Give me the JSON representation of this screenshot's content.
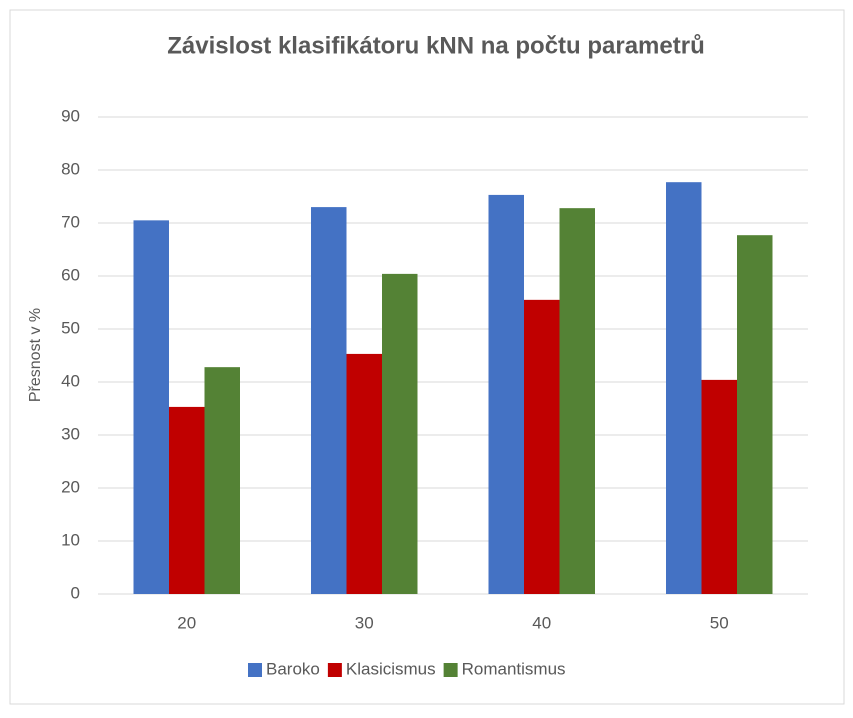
{
  "chart_data": {
    "type": "bar",
    "title": "Závislost klasifikátoru kNN na počtu parametrů",
    "y_label": "Přesnost v %",
    "categories": [
      "20",
      "30",
      "40",
      "50"
    ],
    "series": [
      {
        "name": "Baroko",
        "color": "#4472c4",
        "values": [
          70.5,
          73,
          75.3,
          77.7
        ]
      },
      {
        "name": "Klasicismus",
        "color": "#c00000",
        "values": [
          35.3,
          45.3,
          55.5,
          40.4
        ]
      },
      {
        "name": "Romantismus",
        "color": "#548235",
        "values": [
          42.8,
          60.4,
          72.8,
          67.7
        ]
      }
    ],
    "ylim": [
      0,
      90
    ],
    "yticks": [
      0,
      10,
      20,
      30,
      40,
      50,
      60,
      70,
      80,
      90
    ],
    "grid": true,
    "legend": "bottom"
  }
}
